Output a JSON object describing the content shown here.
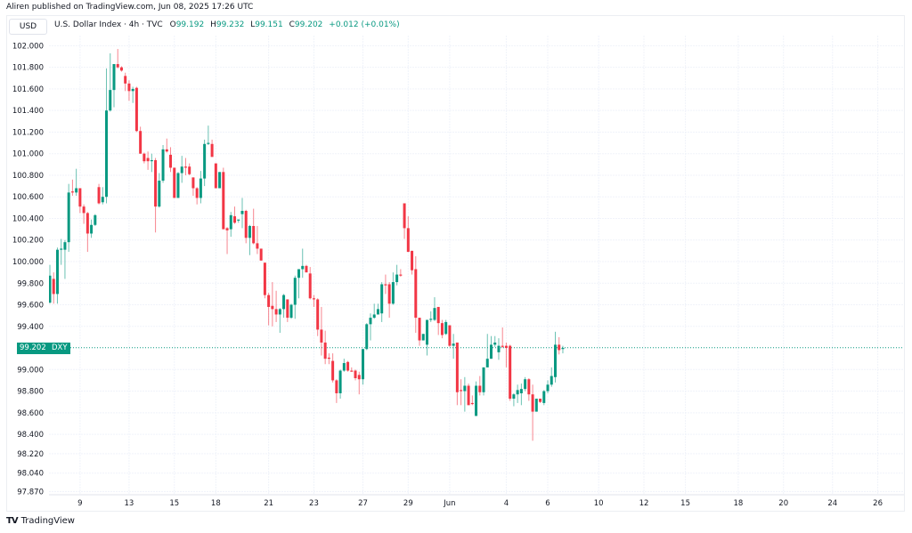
{
  "publisher": "Aliren published on TradingView.com, Jun 08, 2025 17:26 UTC",
  "currency": "USD",
  "legend": {
    "title": "U.S. Dollar Index · 4h · TVC",
    "o_label": "O",
    "o": "99.192",
    "h_label": "H",
    "h": "99.232",
    "l_label": "L",
    "l": "99.151",
    "c_label": "C",
    "c": "99.202",
    "change": "+0.012 (+0.01%)"
  },
  "price_label": {
    "value": "99.202",
    "symbol": "DXY"
  },
  "brand": "TradingView",
  "colors": {
    "up": "#089981",
    "down": "#f23645",
    "grid": "#f0f3fa"
  },
  "chart_data": {
    "type": "candlestick",
    "title": "U.S. Dollar Index · 4h · TVC",
    "last_price": 99.202,
    "ylim": [
      97.87,
      102.05
    ],
    "y_ticks": [
      "102.000",
      "101.800",
      "101.600",
      "101.400",
      "101.200",
      "101.000",
      "100.800",
      "100.600",
      "100.400",
      "100.200",
      "100.000",
      "99.800",
      "99.600",
      "99.400",
      "99.000",
      "98.800",
      "98.600",
      "98.400",
      "98.220",
      "98.040",
      "97.870"
    ],
    "x_ticks": [
      {
        "label": "9",
        "index": 8
      },
      {
        "label": "13",
        "index": 21
      },
      {
        "label": "15",
        "index": 33
      },
      {
        "label": "18",
        "index": 44
      },
      {
        "label": "21",
        "index": 58
      },
      {
        "label": "23",
        "index": 70
      },
      {
        "label": "27",
        "index": 83
      },
      {
        "label": "29",
        "index": 95
      },
      {
        "label": "Jun",
        "index": 106
      },
      {
        "label": "4",
        "index": 121
      },
      {
        "label": "6",
        "index": 132
      },
      {
        "label": "10",
        "index": 145.5
      },
      {
        "label": "12",
        "index": 157.5
      },
      {
        "label": "15",
        "index": 168.5
      },
      {
        "label": "18",
        "index": 182.5
      },
      {
        "label": "20",
        "index": 194.5
      },
      {
        "label": "24",
        "index": 207.5
      },
      {
        "label": "26",
        "index": 219.5
      }
    ],
    "candles_ohlc": [
      [
        99.62,
        99.97,
        99.61,
        99.87
      ],
      [
        99.84,
        99.9,
        99.61,
        99.7
      ],
      [
        99.7,
        100.13,
        99.61,
        100.11
      ],
      [
        100.11,
        100.21,
        99.97,
        100.12
      ],
      [
        100.11,
        100.2,
        99.84,
        100.18
      ],
      [
        100.18,
        100.72,
        100.09,
        100.64
      ],
      [
        100.65,
        100.76,
        100.61,
        100.64
      ],
      [
        100.64,
        100.86,
        100.61,
        100.68
      ],
      [
        100.68,
        100.68,
        100.45,
        100.51
      ],
      [
        100.51,
        100.53,
        100.35,
        100.45
      ],
      [
        100.45,
        100.46,
        100.09,
        100.26
      ],
      [
        100.26,
        100.39,
        100.22,
        100.34
      ],
      [
        100.34,
        100.44,
        100.33,
        100.43
      ],
      [
        100.69,
        100.72,
        100.53,
        100.54
      ],
      [
        100.55,
        100.69,
        100.53,
        100.6
      ],
      [
        100.6,
        101.79,
        100.54,
        101.4
      ],
      [
        101.4,
        101.93,
        101.39,
        101.59
      ],
      [
        101.59,
        101.83,
        101.43,
        101.83
      ],
      [
        101.83,
        101.97,
        101.79,
        101.8
      ],
      [
        101.8,
        101.81,
        101.76,
        101.77
      ],
      [
        101.72,
        101.75,
        101.58,
        101.65
      ],
      [
        101.65,
        101.68,
        101.49,
        101.58
      ],
      [
        101.58,
        101.62,
        101.47,
        101.6
      ],
      [
        101.61,
        101.62,
        101.2,
        101.21
      ],
      [
        101.21,
        101.25,
        101.0,
        101.0
      ],
      [
        101.0,
        101.01,
        100.91,
        100.93
      ],
      [
        100.96,
        101.02,
        100.85,
        100.93
      ],
      [
        100.93,
        101.0,
        100.83,
        100.94
      ],
      [
        100.94,
        100.96,
        100.27,
        100.51
      ],
      [
        100.51,
        100.82,
        100.5,
        100.75
      ],
      [
        100.75,
        101.08,
        100.73,
        101.04
      ],
      [
        101.04,
        101.14,
        101.01,
        101.02
      ],
      [
        100.99,
        101.06,
        100.83,
        100.87
      ],
      [
        100.87,
        100.87,
        100.59,
        100.59
      ],
      [
        100.59,
        100.83,
        100.59,
        100.82
      ],
      [
        100.82,
        100.98,
        100.73,
        100.88
      ],
      [
        100.88,
        100.96,
        100.8,
        100.87
      ],
      [
        100.88,
        100.91,
        100.8,
        100.81
      ],
      [
        100.78,
        100.78,
        100.61,
        100.68
      ],
      [
        100.68,
        100.69,
        100.53,
        100.59
      ],
      [
        100.59,
        100.84,
        100.54,
        100.77
      ],
      [
        100.77,
        101.13,
        100.7,
        101.09
      ],
      [
        101.09,
        101.26,
        101.08,
        101.1
      ],
      [
        101.09,
        101.13,
        100.97,
        100.97
      ],
      [
        100.91,
        100.91,
        100.68,
        100.68
      ],
      [
        100.68,
        100.83,
        100.68,
        100.83
      ],
      [
        100.83,
        100.87,
        100.3,
        100.3
      ],
      [
        100.31,
        100.32,
        100.07,
        100.29
      ],
      [
        100.3,
        100.46,
        100.23,
        100.43
      ],
      [
        100.42,
        100.51,
        100.35,
        100.36
      ],
      [
        100.38,
        100.39,
        100.36,
        100.39
      ],
      [
        100.44,
        100.59,
        100.31,
        100.47
      ],
      [
        100.47,
        100.48,
        100.17,
        100.22
      ],
      [
        100.22,
        100.34,
        100.06,
        100.33
      ],
      [
        100.33,
        100.49,
        100.16,
        100.17
      ],
      [
        100.17,
        100.33,
        100.07,
        100.12
      ],
      [
        100.12,
        100.12,
        100.01,
        100.01
      ],
      [
        99.99,
        99.99,
        99.66,
        99.69
      ],
      [
        99.69,
        99.71,
        99.41,
        99.58
      ],
      [
        99.59,
        99.81,
        99.4,
        99.56
      ],
      [
        99.56,
        99.73,
        99.44,
        99.51
      ],
      [
        99.51,
        99.57,
        99.34,
        99.56
      ],
      [
        99.56,
        99.7,
        99.48,
        99.69
      ],
      [
        99.65,
        99.65,
        99.44,
        99.48
      ],
      [
        99.48,
        99.61,
        99.47,
        99.6
      ],
      [
        99.6,
        99.87,
        99.47,
        99.85
      ],
      [
        99.85,
        99.93,
        99.66,
        99.93
      ],
      [
        99.93,
        100.12,
        99.85,
        99.96
      ],
      [
        99.96,
        99.97,
        99.9,
        99.9
      ],
      [
        99.89,
        99.95,
        99.65,
        99.66
      ],
      [
        99.66,
        99.69,
        99.58,
        99.65
      ],
      [
        99.65,
        99.66,
        99.31,
        99.37
      ],
      [
        99.37,
        99.58,
        99.13,
        99.25
      ],
      [
        99.25,
        99.36,
        99.05,
        99.1
      ],
      [
        99.11,
        99.15,
        99.05,
        99.1
      ],
      [
        99.08,
        99.15,
        98.88,
        98.9
      ],
      [
        98.9,
        98.91,
        98.69,
        98.78
      ],
      [
        98.78,
        99.0,
        98.73,
        98.99
      ],
      [
        98.99,
        99.1,
        98.98,
        99.06
      ],
      [
        99.07,
        99.08,
        98.98,
        98.99
      ],
      [
        98.99,
        99.02,
        98.98,
        98.98
      ],
      [
        98.99,
        99.0,
        98.9,
        98.92
      ],
      [
        98.95,
        98.98,
        98.77,
        98.91
      ],
      [
        98.91,
        99.19,
        98.86,
        99.19
      ],
      [
        99.19,
        99.43,
        99.18,
        99.42
      ],
      [
        99.42,
        99.52,
        99.27,
        99.48
      ],
      [
        99.48,
        99.61,
        99.47,
        99.51
      ],
      [
        99.51,
        99.61,
        99.51,
        99.56
      ],
      [
        99.52,
        99.81,
        99.44,
        99.79
      ],
      [
        99.79,
        99.88,
        99.7,
        99.78
      ],
      [
        99.79,
        99.81,
        99.48,
        99.61
      ],
      [
        99.61,
        99.9,
        99.6,
        99.81
      ],
      [
        99.81,
        99.97,
        99.78,
        99.88
      ],
      [
        99.88,
        99.93,
        99.86,
        99.87
      ],
      [
        100.54,
        100.54,
        100.21,
        100.31
      ],
      [
        100.31,
        100.42,
        100.09,
        100.09
      ],
      [
        100.1,
        100.1,
        99.88,
        99.92
      ],
      [
        99.93,
        100.05,
        99.34,
        99.48
      ],
      [
        99.48,
        99.48,
        99.22,
        99.27
      ],
      [
        99.27,
        99.33,
        99.27,
        99.33
      ],
      [
        99.23,
        99.46,
        99.13,
        99.46
      ],
      [
        99.46,
        99.54,
        99.44,
        99.47
      ],
      [
        99.46,
        99.67,
        99.45,
        99.57
      ],
      [
        99.58,
        99.58,
        99.32,
        99.43
      ],
      [
        99.43,
        99.46,
        99.29,
        99.32
      ],
      [
        99.33,
        99.46,
        99.32,
        99.44
      ],
      [
        99.41,
        99.41,
        99.21,
        99.22
      ],
      [
        99.22,
        99.33,
        99.1,
        99.24
      ],
      [
        99.25,
        99.25,
        98.67,
        98.79
      ],
      [
        98.81,
        98.91,
        98.67,
        98.8
      ],
      [
        98.8,
        98.93,
        98.61,
        98.85
      ],
      [
        98.85,
        98.87,
        98.67,
        98.67
      ],
      [
        98.69,
        98.76,
        98.67,
        98.68
      ],
      [
        98.57,
        98.89,
        98.57,
        98.85
      ],
      [
        98.85,
        98.94,
        98.76,
        98.79
      ],
      [
        98.79,
        99.02,
        98.76,
        99.02
      ],
      [
        99.02,
        99.33,
        99.02,
        99.1
      ],
      [
        99.1,
        99.31,
        99.1,
        99.23
      ],
      [
        99.23,
        99.31,
        99.21,
        99.25
      ],
      [
        99.16,
        99.29,
        99.09,
        99.22
      ],
      [
        99.22,
        99.39,
        99.2,
        99.21
      ],
      [
        99.22,
        99.25,
        99.02,
        99.2
      ],
      [
        99.22,
        99.23,
        98.71,
        98.73
      ],
      [
        98.73,
        98.78,
        98.66,
        98.77
      ],
      [
        98.77,
        98.86,
        98.69,
        98.81
      ],
      [
        98.78,
        98.87,
        98.67,
        98.82
      ],
      [
        98.82,
        98.93,
        98.8,
        98.91
      ],
      [
        98.91,
        98.92,
        98.71,
        98.77
      ],
      [
        98.77,
        98.86,
        98.34,
        98.61
      ],
      [
        98.61,
        98.73,
        98.61,
        98.73
      ],
      [
        98.73,
        98.73,
        98.69,
        98.7
      ],
      [
        98.69,
        98.81,
        98.67,
        98.8
      ],
      [
        98.8,
        98.9,
        98.78,
        98.86
      ],
      [
        98.86,
        99.02,
        98.84,
        98.94
      ],
      [
        98.93,
        99.35,
        98.88,
        99.23
      ],
      [
        99.23,
        99.3,
        99.14,
        99.18
      ],
      [
        99.19,
        99.22,
        99.15,
        99.2
      ]
    ]
  }
}
